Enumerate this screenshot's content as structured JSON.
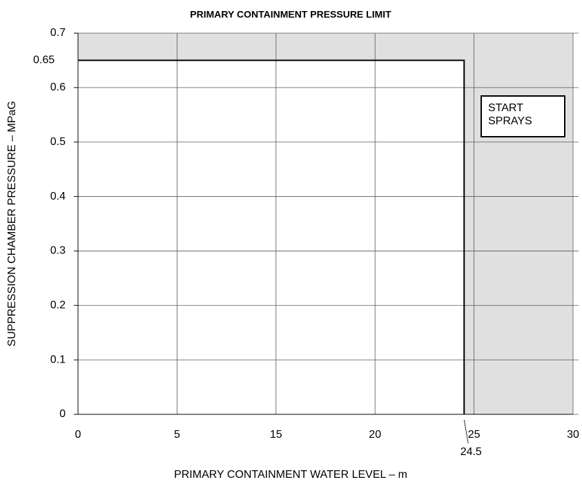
{
  "chart_data": {
    "type": "line",
    "title": "PRIMARY CONTAINMENT PRESSURE LIMIT",
    "xlabel": "PRIMARY CONTAINMENT WATER LEVEL – m",
    "ylabel": "SUPPRESSION CHAMBER PRESSURE – MPaG",
    "xlim": [
      0,
      30
    ],
    "ylim": [
      0,
      0.7
    ],
    "xticks": [
      0,
      5,
      15,
      20,
      25,
      30
    ],
    "yticks": [
      0,
      0.1,
      0.2,
      0.3,
      0.4,
      0.5,
      0.6,
      0.7
    ],
    "grid": true,
    "shade_color": "#e0e0e0",
    "series": [
      {
        "color": "#000000",
        "x": [
          0,
          24.5,
          24.5
        ],
        "values": [
          0.65,
          0.65,
          0
        ]
      }
    ],
    "annotation": "START SPRAYS"
  }
}
